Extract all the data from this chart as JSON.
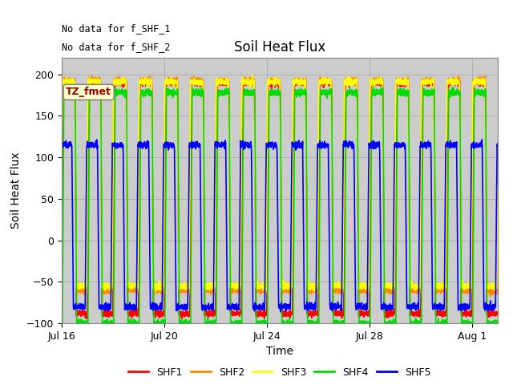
{
  "title": "Soil Heat Flux",
  "xlabel": "Time",
  "ylabel": "Soil Heat Flux",
  "ylim": [
    -100,
    220
  ],
  "yticks": [
    -100,
    -50,
    0,
    50,
    100,
    150,
    200
  ],
  "colors": {
    "SHF1": "#ff0000",
    "SHF2": "#ff8800",
    "SHF3": "#ffff00",
    "SHF4": "#00dd00",
    "SHF5": "#0000ff"
  },
  "legend_labels": [
    "SHF1",
    "SHF2",
    "SHF3",
    "SHF4",
    "SHF5"
  ],
  "text_annotations": [
    "No data for f_SHF_1",
    "No data for f_SHF_2"
  ],
  "box_label": "TZ_fmet",
  "xtick_labels": [
    "Jul 16",
    "Jul 20",
    "Jul 24",
    "Jul 28",
    "Aug 1"
  ],
  "background_color": "#ffffff",
  "plot_bg_color": "#cccccc",
  "linewidth": 1.2
}
